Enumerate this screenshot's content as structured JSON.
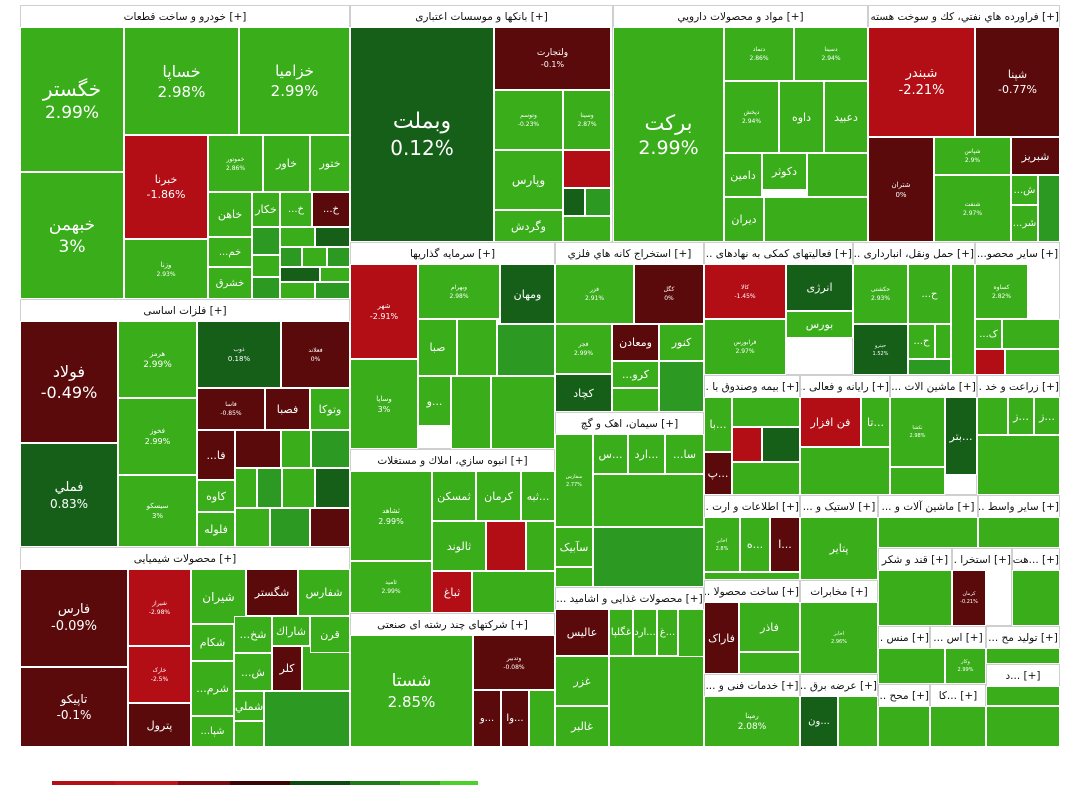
{
  "colors": {
    "deep_red": "#b30d15",
    "dark_red": "#5a0a0a",
    "dark_green": "#155f18",
    "mid_green": "#2c9a22",
    "light_green": "#3aad1b"
  },
  "legend_colors": [
    "#b30d15",
    "#c3111a",
    "#7a0a0f",
    "#3b0505",
    "#0d4a10",
    "#1f7a1a",
    "#36a81e",
    "#4cd12b"
  ],
  "chart_data": {
    "type": "treemap",
    "title": "",
    "sectors": [
      {
        "name": "[+] خودرو و ساخت قطعات",
        "stocks": [
          {
            "name": "خگستر",
            "change": "2.99%"
          },
          {
            "name": "خبهمن",
            "change": "3%"
          },
          {
            "name": "خساپا",
            "change": "2.98%"
          },
          {
            "name": "خزامیا",
            "change": "2.99%"
          },
          {
            "name": "خبرنا",
            "change": "-1.86%"
          },
          {
            "name": "وزنا",
            "change": "2.93%"
          },
          {
            "name": "خاور",
            "change": ""
          },
          {
            "name": "ختور",
            "change": ""
          },
          {
            "name": "خاهن",
            "change": ""
          },
          {
            "name": "خکار",
            "change": ""
          },
          {
            "name": "خ...",
            "change": ""
          },
          {
            "name": "خ...",
            "change": ""
          },
          {
            "name": "خم...",
            "change": ""
          },
          {
            "name": "خشرق",
            "change": ""
          },
          {
            "name": "خموتور",
            "change": "2.86%"
          }
        ]
      },
      {
        "name": "[+] بانکها و موسسات اعتباری",
        "stocks": [
          {
            "name": "وبملت",
            "change": "0.12%"
          },
          {
            "name": "ولتجارت",
            "change": "-0.1%"
          },
          {
            "name": "وتوسم",
            "change": "-0.23%"
          },
          {
            "name": "وسینا",
            "change": "2.87%"
          },
          {
            "name": "وپارس",
            "change": ""
          },
          {
            "name": "وگردش",
            "change": ""
          }
        ]
      },
      {
        "name": "[+] مواد و محصولات دارويي",
        "stocks": [
          {
            "name": "برکت",
            "change": "2.99%"
          },
          {
            "name": "دتماد",
            "change": "2.86%"
          },
          {
            "name": "دسینا",
            "change": "2.94%"
          },
          {
            "name": "دپخش",
            "change": "2.94%"
          },
          {
            "name": "داوه",
            "change": ""
          },
          {
            "name": "دعبید",
            "change": ""
          },
          {
            "name": "دکوثر",
            "change": ""
          },
          {
            "name": "دامین",
            "change": ""
          },
          {
            "name": "دیران",
            "change": ""
          }
        ]
      },
      {
        "name": "[+] فراورده هاي نفتي، كك و سوخت هسته اي",
        "stocks": [
          {
            "name": "شبندر",
            "change": "-2.21%"
          },
          {
            "name": "شپنا",
            "change": "-0.77%"
          },
          {
            "name": "شتران",
            "change": "0%"
          },
          {
            "name": "شبریز",
            "change": ""
          },
          {
            "name": "شپاس",
            "change": "2.9%"
          },
          {
            "name": "شنفت",
            "change": "2.97%"
          },
          {
            "name": "ش...",
            "change": ""
          },
          {
            "name": "شر...",
            "change": ""
          }
        ]
      },
      {
        "name": "[+] فلزات اساسی",
        "stocks": [
          {
            "name": "فولاد",
            "change": "-0.49%"
          },
          {
            "name": "فملي",
            "change": "0.83%"
          },
          {
            "name": "هرمز",
            "change": "2.99%"
          },
          {
            "name": "فخوز",
            "change": "2.99%"
          },
          {
            "name": "سیسکو",
            "change": "3%"
          },
          {
            "name": "ذوب",
            "change": "0.18%"
          },
          {
            "name": "فعلاند",
            "change": "0%"
          },
          {
            "name": "فاسا",
            "change": "-0.85%"
          },
          {
            "name": "فصبا",
            "change": ""
          },
          {
            "name": "وتوکا",
            "change": ""
          },
          {
            "name": "فا...",
            "change": ""
          },
          {
            "name": "کاوه",
            "change": ""
          },
          {
            "name": "فلوله",
            "change": ""
          }
        ]
      },
      {
        "name": "[+] محصولات شیمیایی",
        "stocks": [
          {
            "name": "فارس",
            "change": "-0.09%"
          },
          {
            "name": "تاپیکو",
            "change": "-0.1%"
          },
          {
            "name": "شیراز",
            "change": "-2.98%"
          },
          {
            "name": "خارک",
            "change": "-2.5%"
          },
          {
            "name": "پترول",
            "change": ""
          },
          {
            "name": "شیران",
            "change": ""
          },
          {
            "name": "شگستر",
            "change": ""
          },
          {
            "name": "شفارس",
            "change": ""
          },
          {
            "name": "شکام",
            "change": ""
          },
          {
            "name": "شخ...",
            "change": ""
          },
          {
            "name": "شاراك",
            "change": ""
          },
          {
            "name": "قرن",
            "change": ""
          },
          {
            "name": "شرم...",
            "change": ""
          },
          {
            "name": "کلر",
            "change": ""
          },
          {
            "name": "شملي",
            "change": ""
          },
          {
            "name": "شپا...",
            "change": ""
          },
          {
            "name": "ش...",
            "change": ""
          }
        ]
      },
      {
        "name": "[+] سرمايه گذاريها",
        "stocks": [
          {
            "name": "وبهرام",
            "change": "2.98%"
          },
          {
            "name": "ومهان",
            "change": ""
          },
          {
            "name": "شهر",
            "change": "-2.91%"
          },
          {
            "name": "وساپا",
            "change": "3%"
          },
          {
            "name": "صبا",
            "change": ""
          },
          {
            "name": "...و",
            "change": ""
          }
        ]
      },
      {
        "name": "[+] استخراج کانه هاي فلزي",
        "stocks": [
          {
            "name": "فزر",
            "change": "2.91%"
          },
          {
            "name": "کگل",
            "change": "0%"
          },
          {
            "name": "کنور",
            "change": ""
          },
          {
            "name": "ومعادن",
            "change": ""
          },
          {
            "name": "کرو...",
            "change": ""
          },
          {
            "name": "کچاد",
            "change": ""
          },
          {
            "name": "فجر",
            "change": "2.99%"
          }
        ]
      },
      {
        "name": "[+] فعالیتهای کمکی به نهادهای ...",
        "stocks": [
          {
            "name": "کالا",
            "change": "-1.45%"
          },
          {
            "name": "انرژی",
            "change": ""
          },
          {
            "name": "بورس",
            "change": ""
          },
          {
            "name": "فرابورس",
            "change": "2.97%"
          }
        ]
      },
      {
        "name": "[+] حمل ونقل، انبارداری ...",
        "stocks": [
          {
            "name": "حکشتی",
            "change": "2.93%"
          },
          {
            "name": "حپترو",
            "change": "1.52%"
          },
          {
            "name": "ح...",
            "change": ""
          },
          {
            "name": "ح...",
            "change": ""
          }
        ]
      },
      {
        "name": "[+] سایر محصو...",
        "stocks": [
          {
            "name": "کساوه",
            "change": "2.82%"
          },
          {
            "name": "ک...",
            "change": ""
          }
        ]
      },
      {
        "name": "[+] سیمان، اهک و گچ",
        "stocks": [
          {
            "name": "سفارس",
            "change": "2.77%"
          },
          {
            "name": "سا...",
            "change": ""
          },
          {
            "name": "...ارد",
            "change": ""
          },
          {
            "name": "...س",
            "change": ""
          },
          {
            "name": "سآبیک",
            "change": ""
          }
        ]
      },
      {
        "name": "[+] بیمه وصندوق با ...",
        "stocks": [
          {
            "name": "...با",
            "change": ""
          },
          {
            "name": "...پ",
            "change": ""
          }
        ]
      },
      {
        "name": "[+] رایانه و فعالی ...",
        "stocks": [
          {
            "name": "فن افزار",
            "change": ""
          },
          {
            "name": "...تا",
            "change": ""
          }
        ]
      },
      {
        "name": "[+] ماشین الات ...",
        "stocks": [
          {
            "name": "...بتر",
            "change": ""
          },
          {
            "name": "تکشا",
            "change": "2.98%"
          }
        ]
      },
      {
        "name": "[+] زراعت و خد ...",
        "stocks": [
          {
            "name": "...ز",
            "change": ""
          },
          {
            "name": "...ز",
            "change": ""
          }
        ]
      },
      {
        "name": "[+] انبوه سازي، املاك و مستغلات",
        "stocks": [
          {
            "name": "ثشاهد",
            "change": "2.99%"
          },
          {
            "name": "ثامید",
            "change": "2.99%"
          },
          {
            "name": "ثمسکن",
            "change": ""
          },
          {
            "name": "کرمان",
            "change": ""
          },
          {
            "name": "...ثبه",
            "change": ""
          },
          {
            "name": "ثالوند",
            "change": ""
          },
          {
            "name": "ثباغ",
            "change": ""
          }
        ]
      },
      {
        "name": "[+] اطلاعات و ارت ...",
        "stocks": [
          {
            "name": "...ه",
            "change": ""
          },
          {
            "name": "...ا",
            "change": ""
          },
          {
            "name": "اخابر",
            "change": "2.8%"
          }
        ]
      },
      {
        "name": "[+] لاستیک و ...",
        "stocks": [
          {
            "name": "پتایر",
            "change": ""
          }
        ]
      },
      {
        "name": "[+] ماشین آلات و ...",
        "stocks": []
      },
      {
        "name": "[+] سایر واسط ...",
        "stocks": []
      },
      {
        "name": "[+] قند و شکر",
        "stocks": []
      },
      {
        "name": "[+] استخرا ...",
        "stocks": [
          {
            "name": "کرمان",
            "change": "-0.21%"
          }
        ]
      },
      {
        "name": "[+] ...هت",
        "stocks": []
      },
      {
        "name": "[+] محصولات غذایی و اشامید ...",
        "stocks": [
          {
            "name": "غگلپا",
            "change": ""
          },
          {
            "name": "...ارد",
            "change": ""
          },
          {
            "name": "...غ",
            "change": ""
          },
          {
            "name": "عالیس",
            "change": ""
          },
          {
            "name": "غزر",
            "change": ""
          },
          {
            "name": "غالبر",
            "change": ""
          }
        ]
      },
      {
        "name": "[+] ساخت محصولا ...",
        "stocks": [
          {
            "name": "فاذر",
            "change": ""
          },
          {
            "name": "فاراک",
            "change": ""
          }
        ]
      },
      {
        "name": "[+] مخابرات",
        "stocks": [
          {
            "name": "اخابر",
            "change": "2.96%"
          }
        ]
      },
      {
        "name": "[+] منس ...",
        "stocks": []
      },
      {
        "name": "[+] اس ...",
        "stocks": [
          {
            "name": "وکار",
            "change": "2.99%"
          }
        ]
      },
      {
        "name": "[+] تولید مح ...",
        "stocks": []
      },
      {
        "name": "[+] شرکتهای چند رشته ای صنعتی",
        "stocks": [
          {
            "name": "شستا",
            "change": "2.85%"
          },
          {
            "name": "وتدبیر",
            "change": "-0.08%"
          },
          {
            "name": "...و",
            "change": ""
          },
          {
            "name": "...وا",
            "change": ""
          }
        ]
      },
      {
        "name": "[+] خدمات فنی و ...",
        "stocks": [
          {
            "name": "رمپنا",
            "change": "2.08%"
          }
        ]
      },
      {
        "name": "[+] عرضه برق ...",
        "stocks": [
          {
            "name": "...ون",
            "change": ""
          }
        ]
      },
      {
        "name": "[+] محح ...",
        "stocks": []
      },
      {
        "name": "[+] ...کا",
        "stocks": []
      },
      {
        "name": "[+] ...د",
        "stocks": []
      }
    ]
  }
}
